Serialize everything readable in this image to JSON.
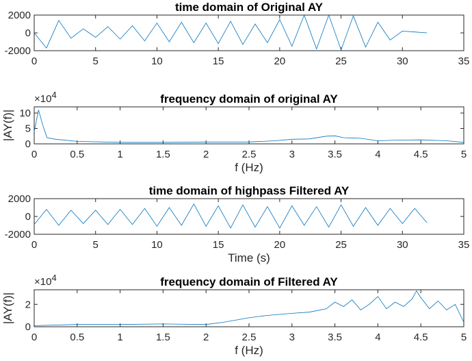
{
  "figure": {
    "background": "#ffffff",
    "line_color": "#0072BD",
    "axis_color": "#262626"
  },
  "chart_data": [
    {
      "type": "line",
      "title": "time domain of Original AY",
      "xlabel": "",
      "ylabel": "",
      "xlim": [
        0,
        35
      ],
      "ylim": [
        -2000,
        2000
      ],
      "xticks": [
        0,
        5,
        10,
        15,
        20,
        25,
        30,
        35
      ],
      "yticks": [
        -2000,
        0,
        2000
      ],
      "xtick_labels": [
        "0",
        "5",
        "10",
        "15",
        "20",
        "25",
        "30",
        "35"
      ],
      "ytick_labels": [
        "-2000",
        "0",
        "2000"
      ],
      "exponent_label": "",
      "grid": false,
      "series": [
        {
          "x": [
            0,
            1,
            2,
            3,
            4,
            5,
            6,
            7,
            8,
            9,
            10,
            11,
            12,
            13,
            14,
            15,
            16,
            17,
            18,
            19,
            20,
            21,
            22,
            23,
            24,
            25,
            26,
            27,
            28,
            29,
            30,
            31,
            32
          ],
          "y": [
            0,
            -1700,
            1400,
            -600,
            450,
            -500,
            700,
            -700,
            800,
            -900,
            1100,
            -1000,
            1200,
            -1100,
            1100,
            -1200,
            1300,
            -1300,
            1000,
            -1100,
            1500,
            -1500,
            2000,
            -1800,
            2000,
            -1900,
            1900,
            -1600,
            1200,
            -800,
            200,
            100,
            0
          ]
        }
      ]
    },
    {
      "type": "line",
      "title": "frequency domain of original AY",
      "xlabel": "f (Hz)",
      "ylabel": "|AY(f)|",
      "xlim": [
        0,
        5
      ],
      "ylim": [
        0,
        12
      ],
      "xticks": [
        0,
        0.5,
        1,
        1.5,
        2,
        2.5,
        3,
        3.5,
        4,
        4.5,
        5
      ],
      "yticks": [
        0,
        5,
        10
      ],
      "xtick_labels": [
        "0",
        "0.5",
        "1",
        "1.5",
        "2",
        "2.5",
        "3",
        "3.5",
        "4",
        "4.5",
        "5"
      ],
      "ytick_labels": [
        "0",
        "5",
        "10"
      ],
      "exponent_label": "×10^4",
      "grid": false,
      "series": [
        {
          "x": [
            0,
            0.05,
            0.1,
            0.15,
            0.25,
            0.5,
            1,
            1.5,
            2,
            2.5,
            2.8,
            3,
            3.2,
            3.4,
            3.5,
            3.6,
            3.8,
            4,
            4.2,
            4.5,
            4.8,
            5
          ],
          "y": [
            4,
            11,
            6,
            2,
            1.5,
            0.8,
            0.5,
            0.5,
            0.6,
            0.6,
            1.0,
            1.5,
            1.6,
            2.5,
            2.6,
            2.0,
            1.8,
            1.0,
            1.2,
            1.3,
            1.0,
            0.5
          ]
        }
      ]
    },
    {
      "type": "line",
      "title": "time domain of highpass Filtered AY",
      "xlabel": "Time (s)",
      "ylabel": "",
      "xlim": [
        0,
        35
      ],
      "ylim": [
        -2000,
        2000
      ],
      "xticks": [
        0,
        5,
        10,
        15,
        20,
        25,
        30,
        35
      ],
      "yticks": [
        -2000,
        0,
        2000
      ],
      "xtick_labels": [
        "0",
        "5",
        "10",
        "15",
        "20",
        "25",
        "30",
        "35"
      ],
      "ytick_labels": [
        "-2000",
        "0",
        "2000"
      ],
      "exponent_label": "",
      "grid": false,
      "series": [
        {
          "x": [
            0,
            1,
            2,
            3,
            4,
            5,
            6,
            7,
            8,
            9,
            10,
            11,
            12,
            13,
            14,
            15,
            16,
            17,
            18,
            19,
            20,
            21,
            22,
            23,
            24,
            25,
            26,
            27,
            28,
            29,
            30,
            31,
            32
          ],
          "y": [
            -900,
            800,
            -1000,
            700,
            -800,
            700,
            -900,
            800,
            -900,
            900,
            -1100,
            1000,
            -1000,
            1400,
            -1100,
            1200,
            -1300,
            1300,
            -1200,
            1100,
            -1300,
            1200,
            -1000,
            1100,
            -1200,
            1300,
            -1100,
            1000,
            -1000,
            900,
            -800,
            900,
            -700
          ]
        }
      ]
    },
    {
      "type": "line",
      "title": "frequency domain of Filtered AY",
      "xlabel": "f (Hz)",
      "ylabel": "|AY(f)|",
      "xlim": [
        0,
        5
      ],
      "ylim": [
        0,
        3.3
      ],
      "xticks": [
        0,
        0.5,
        1,
        1.5,
        2,
        2.5,
        3,
        3.5,
        4,
        4.5,
        5
      ],
      "yticks": [
        0,
        2
      ],
      "xtick_labels": [
        "0",
        "0.5",
        "1",
        "1.5",
        "2",
        "2.5",
        "3",
        "3.5",
        "4",
        "4.5",
        "5"
      ],
      "ytick_labels": [
        "0",
        "2"
      ],
      "exponent_label": "×10^4",
      "grid": false,
      "series": [
        {
          "x": [
            0,
            0.5,
            1,
            1.5,
            2,
            2.2,
            2.5,
            2.7,
            3,
            3.2,
            3.4,
            3.5,
            3.6,
            3.7,
            3.8,
            3.9,
            4,
            4.1,
            4.2,
            4.3,
            4.4,
            4.45,
            4.5,
            4.6,
            4.7,
            4.8,
            4.9,
            5
          ],
          "y": [
            0.1,
            0.2,
            0.2,
            0.25,
            0.2,
            0.4,
            0.8,
            1.0,
            1.2,
            1.3,
            1.6,
            2.2,
            1.8,
            2.4,
            1.5,
            2.0,
            2.7,
            1.6,
            2.2,
            1.8,
            2.5,
            3.2,
            2.6,
            1.6,
            2.3,
            1.5,
            2.0,
            0.4
          ]
        }
      ]
    }
  ]
}
